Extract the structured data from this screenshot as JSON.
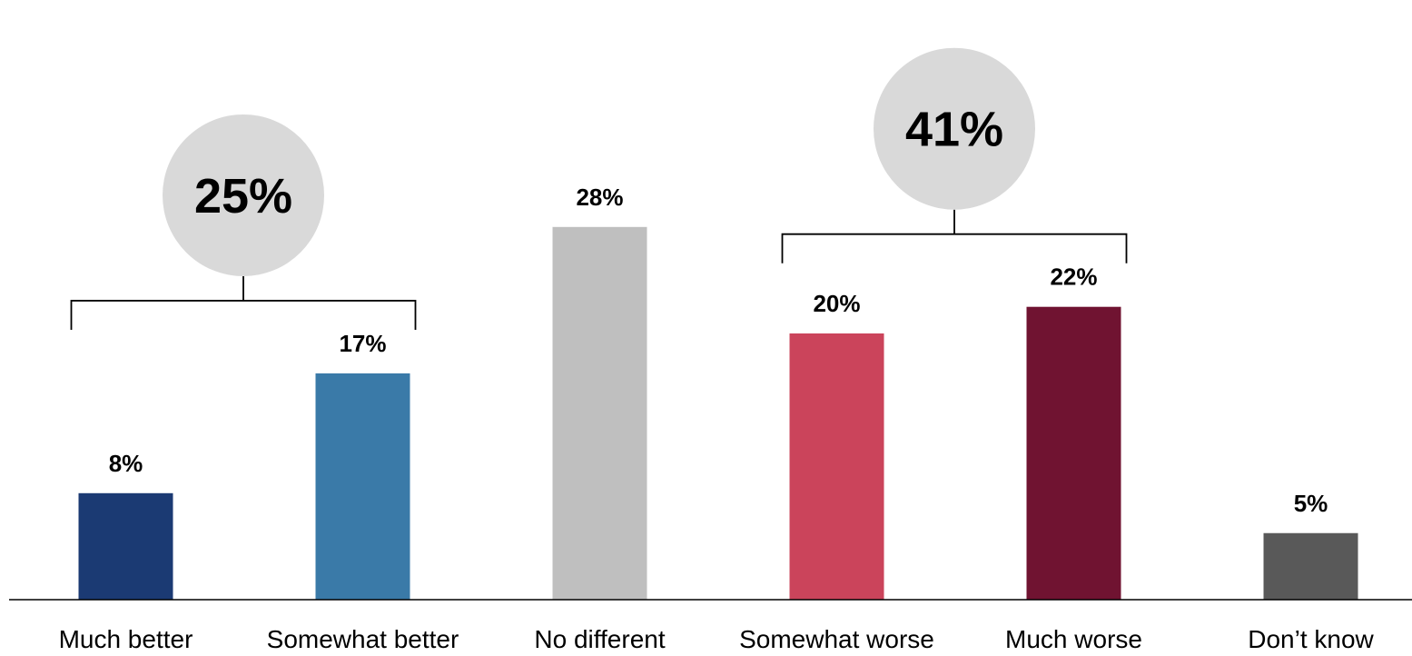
{
  "chart_data": {
    "type": "bar",
    "categories": [
      "Much better",
      "Somewhat better",
      "No different",
      "Somewhat worse",
      "Much worse",
      "Don’t know"
    ],
    "values": [
      8,
      17,
      28,
      20,
      22,
      5
    ],
    "value_labels": [
      "8%",
      "17%",
      "28%",
      "20%",
      "22%",
      "5%"
    ],
    "colors": [
      "#1b3a73",
      "#3a7aa8",
      "#bfbfbf",
      "#cb445b",
      "#701331",
      "#595959"
    ],
    "ylim": [
      0,
      35
    ],
    "grid": false,
    "title": "",
    "xlabel": "",
    "ylabel": "",
    "groups": [
      {
        "label": "25%",
        "value": 25,
        "categories": [
          0,
          1
        ],
        "circle_color": "#d9d9d9"
      },
      {
        "label": "41%",
        "value": 41,
        "categories": [
          3,
          4
        ],
        "circle_color": "#d9d9d9"
      }
    ]
  }
}
